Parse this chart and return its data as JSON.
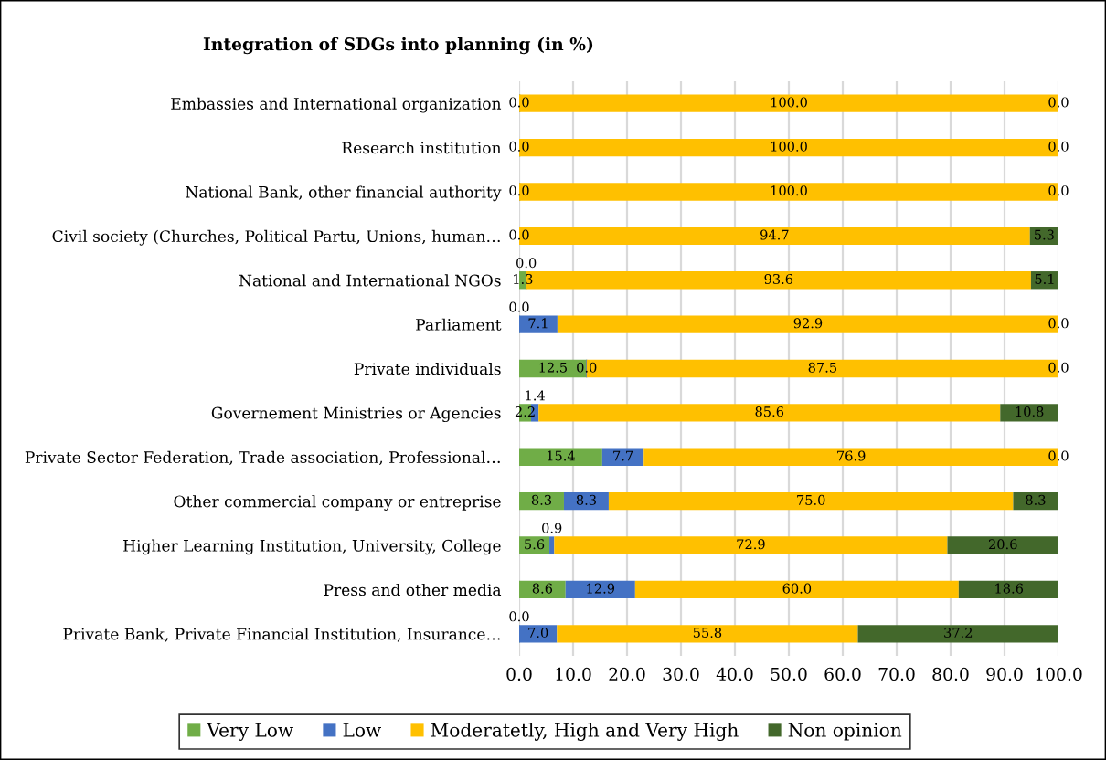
{
  "chart_data": {
    "type": "bar",
    "orientation": "horizontal",
    "stacked": true,
    "title": "Integration of SDGs into planning (in %)",
    "categories": [
      "Embassies and International organization",
      "Research institution",
      "National Bank, other financial authority",
      "Civil society (Churches, Political Partu, Unions, human…",
      "National and International NGOs",
      "Parliament",
      "Private individuals",
      "Governement Ministries or Agencies",
      "Private Sector Federation, Trade association, Professional…",
      "Other commercial company or entreprise",
      "Higher Learning Institution, University, College",
      "Press and other media",
      "Private Bank, Private Financial Institution, Insurance…"
    ],
    "series": [
      {
        "name": "Very Low",
        "color": "#70ad47",
        "values": [
          0,
          0,
          0,
          0,
          1.3,
          0,
          12.5,
          2.2,
          15.4,
          8.3,
          5.6,
          8.6,
          0
        ],
        "value_labels": [
          "0.0",
          "0.0",
          "0.0",
          "0.0",
          "1.3",
          "0.0",
          "12.5",
          "2.2",
          "15.4",
          "8.3",
          "5.6",
          "8.6",
          "0.0"
        ]
      },
      {
        "name": "Low",
        "color": "#4472c4",
        "values": [
          0,
          0,
          0,
          0,
          0,
          7.1,
          0,
          1.4,
          7.7,
          8.3,
          0.9,
          12.9,
          7.0
        ],
        "value_labels": [
          null,
          null,
          null,
          null,
          "0.0",
          "7.1",
          "0.0",
          "1.4",
          "7.7",
          "8.3",
          "0.9",
          "12.9",
          "7.0"
        ]
      },
      {
        "name": "Moderatetly, High and Very High",
        "color": "#ffc000",
        "values": [
          100,
          100,
          100,
          94.7,
          93.6,
          92.9,
          87.5,
          85.6,
          76.9,
          75.0,
          72.9,
          60.0,
          55.8
        ],
        "value_labels": [
          "100.0",
          "100.0",
          "100.0",
          "94.7",
          "93.6",
          "92.9",
          "87.5",
          "85.6",
          "76.9",
          "75.0",
          "72.9",
          "60.0",
          "55.8"
        ]
      },
      {
        "name": "Non opinion",
        "color": "#43682b",
        "values": [
          0,
          0,
          0,
          5.3,
          5.1,
          0,
          0,
          10.8,
          0,
          8.3,
          20.6,
          18.6,
          37.2
        ],
        "value_labels": [
          "0.0",
          "0.0",
          "0.0",
          "5.3",
          "5.1",
          "0.0",
          "0.0",
          "10.8",
          "0.0",
          "8.3",
          "20.6",
          "18.6",
          "37.2"
        ]
      }
    ],
    "xlim": [
      0,
      100
    ],
    "xticks": [
      {
        "value": 0,
        "label": "0.0"
      },
      {
        "value": 10,
        "label": "10.0"
      },
      {
        "value": 20,
        "label": "20.0"
      },
      {
        "value": 30,
        "label": "30.0"
      },
      {
        "value": 40,
        "label": "40.0"
      },
      {
        "value": 50,
        "label": "50.0"
      },
      {
        "value": 60,
        "label": "60.0"
      },
      {
        "value": 70,
        "label": "70.0"
      },
      {
        "value": 80,
        "label": "80.0"
      },
      {
        "value": 90,
        "label": "90.0"
      },
      {
        "value": 100,
        "label": "100.0"
      }
    ],
    "grid": "x",
    "legend": "bottom"
  }
}
